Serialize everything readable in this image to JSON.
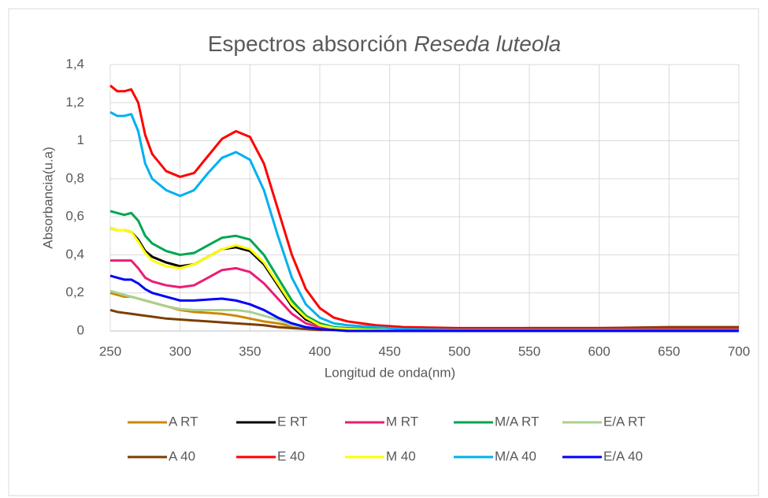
{
  "chart_data": {
    "type": "line",
    "title": [
      "Espectros absorción",
      "Reseda luteola"
    ],
    "x_label": "Longitud de onda(nm)",
    "y_label": "Absorbancia(u.a)",
    "x": [
      250,
      255,
      260,
      265,
      270,
      275,
      280,
      290,
      300,
      310,
      320,
      330,
      340,
      350,
      360,
      370,
      380,
      390,
      400,
      410,
      420,
      440,
      460,
      500,
      550,
      600,
      650,
      700
    ],
    "xlim": [
      250,
      700
    ],
    "xticks": [
      250,
      300,
      350,
      400,
      450,
      500,
      550,
      600,
      650,
      700
    ],
    "ylim": [
      0,
      1.4
    ],
    "yticks": [
      0,
      {
        "value": 0.2,
        "label": "0,2"
      },
      {
        "value": 0.4,
        "label": "0,4"
      },
      {
        "value": 0.6,
        "label": "0,6"
      },
      {
        "value": 0.8,
        "label": "0,8"
      },
      1,
      {
        "value": 1.2,
        "label": "1,2"
      },
      {
        "value": 1.4,
        "label": "1,4"
      }
    ],
    "grid": true,
    "legend": "bottom",
    "series": [
      {
        "name": "A RT",
        "color": "#cc8800",
        "values": [
          0.2,
          0.19,
          0.18,
          0.18,
          0.17,
          0.16,
          0.15,
          0.13,
          0.11,
          0.1,
          0.095,
          0.09,
          0.08,
          0.065,
          0.05,
          0.04,
          0.025,
          0.015,
          0.01,
          0.005,
          0,
          0,
          0,
          0,
          0,
          0.005,
          0.01,
          0.01
        ]
      },
      {
        "name": "E RT",
        "color": "#000000",
        "values": [
          0.54,
          0.53,
          0.53,
          0.52,
          0.48,
          0.42,
          0.39,
          0.36,
          0.34,
          0.35,
          0.39,
          0.43,
          0.44,
          0.42,
          0.35,
          0.24,
          0.13,
          0.06,
          0.03,
          0.015,
          0.01,
          0.005,
          0.005,
          0.005,
          0.005,
          0.005,
          0.005,
          0.005
        ]
      },
      {
        "name": "M RT",
        "color": "#ec1c74",
        "values": [
          0.37,
          0.37,
          0.37,
          0.37,
          0.33,
          0.28,
          0.26,
          0.24,
          0.23,
          0.24,
          0.28,
          0.32,
          0.33,
          0.31,
          0.25,
          0.17,
          0.09,
          0.04,
          0.02,
          0.01,
          0.005,
          0.005,
          0.005,
          0.005,
          0.005,
          0.005,
          0.005,
          0.005
        ]
      },
      {
        "name": "M/A RT",
        "color": "#00a651",
        "values": [
          0.63,
          0.62,
          0.61,
          0.62,
          0.58,
          0.5,
          0.46,
          0.42,
          0.4,
          0.41,
          0.45,
          0.49,
          0.5,
          0.48,
          0.4,
          0.28,
          0.16,
          0.08,
          0.04,
          0.02,
          0.015,
          0.01,
          0.01,
          0.005,
          0.005,
          0.005,
          0.005,
          0.005
        ]
      },
      {
        "name": "E/A RT",
        "color": "#a9d18e",
        "values": [
          0.21,
          0.2,
          0.19,
          0.18,
          0.17,
          0.16,
          0.15,
          0.13,
          0.115,
          0.11,
          0.11,
          0.11,
          0.11,
          0.1,
          0.08,
          0.06,
          0.03,
          0.02,
          0.01,
          0.005,
          0,
          0,
          0,
          0,
          0,
          0,
          0,
          0
        ]
      },
      {
        "name": "A 40",
        "color": "#7b3f00",
        "values": [
          0.11,
          0.1,
          0.095,
          0.09,
          0.085,
          0.08,
          0.075,
          0.065,
          0.06,
          0.055,
          0.05,
          0.045,
          0.04,
          0.035,
          0.03,
          0.02,
          0.015,
          0.01,
          0.005,
          0.005,
          0.005,
          0.005,
          0.01,
          0.01,
          0.015,
          0.015,
          0.02,
          0.02
        ]
      },
      {
        "name": "E 40",
        "color": "#ff0000",
        "values": [
          1.29,
          1.26,
          1.26,
          1.27,
          1.2,
          1.03,
          0.93,
          0.84,
          0.81,
          0.83,
          0.92,
          1.01,
          1.05,
          1.02,
          0.88,
          0.64,
          0.4,
          0.22,
          0.12,
          0.07,
          0.05,
          0.03,
          0.02,
          0.015,
          0.015,
          0.015,
          0.015,
          0.015
        ]
      },
      {
        "name": "M 40",
        "color": "#ffff00",
        "values": [
          0.54,
          0.53,
          0.53,
          0.52,
          0.47,
          0.41,
          0.37,
          0.34,
          0.33,
          0.35,
          0.39,
          0.43,
          0.45,
          0.43,
          0.36,
          0.25,
          0.14,
          0.07,
          0.03,
          0.015,
          0.01,
          0.005,
          0.005,
          0.005,
          0.005,
          0.005,
          0.005,
          0.005
        ]
      },
      {
        "name": "M/A 40",
        "color": "#00b0f0",
        "values": [
          1.15,
          1.13,
          1.13,
          1.14,
          1.05,
          0.88,
          0.8,
          0.74,
          0.71,
          0.74,
          0.83,
          0.91,
          0.94,
          0.9,
          0.74,
          0.5,
          0.28,
          0.14,
          0.07,
          0.04,
          0.03,
          0.02,
          0.01,
          0.005,
          0.005,
          0.005,
          0.005,
          0.005
        ]
      },
      {
        "name": "E/A 40",
        "color": "#0000ff",
        "values": [
          0.29,
          0.28,
          0.27,
          0.27,
          0.25,
          0.22,
          0.2,
          0.18,
          0.16,
          0.16,
          0.165,
          0.17,
          0.16,
          0.14,
          0.11,
          0.07,
          0.04,
          0.02,
          0.01,
          0.005,
          0,
          0,
          0,
          0,
          0,
          0,
          0,
          0
        ]
      }
    ]
  }
}
